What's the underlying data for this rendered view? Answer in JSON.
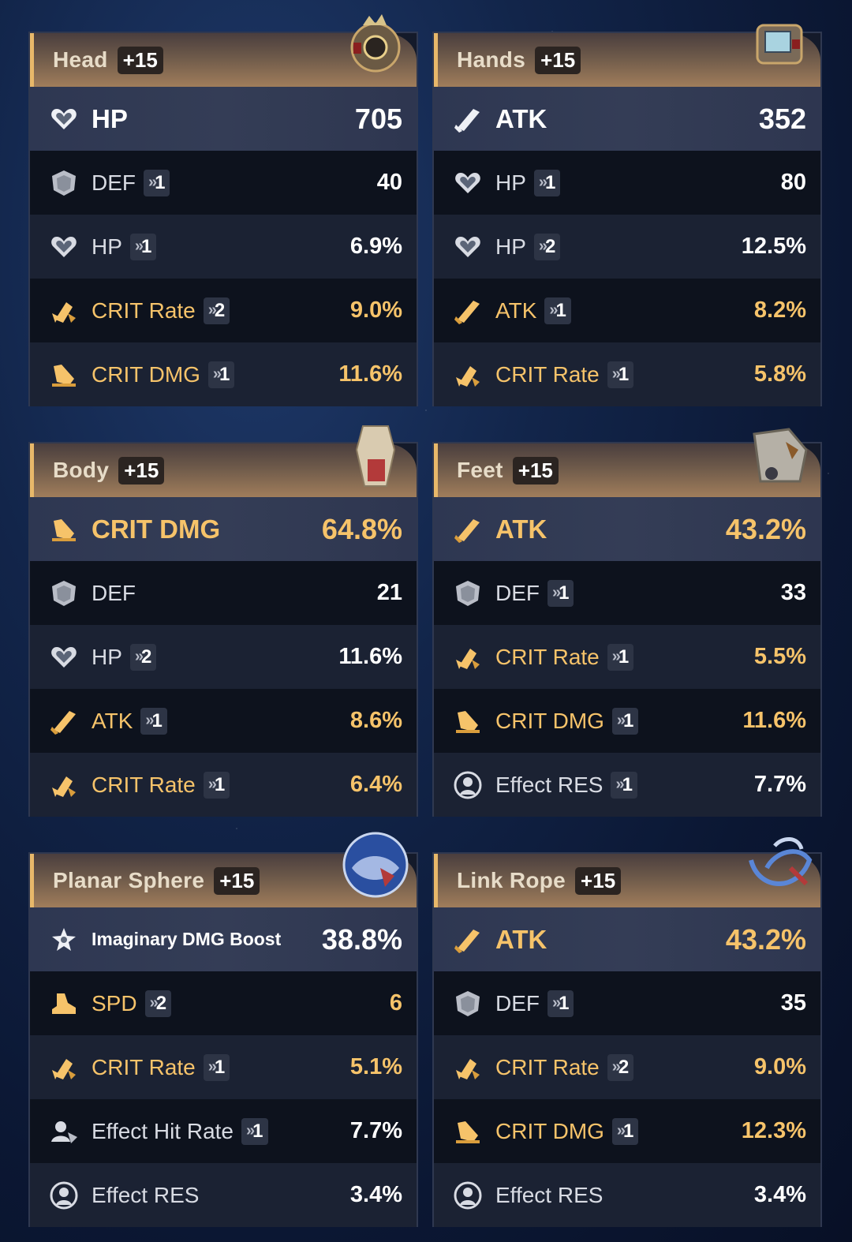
{
  "cards": [
    {
      "slot": "Head",
      "level": "+15",
      "art": "head-relic",
      "main": {
        "icon": "hp",
        "label": "HP",
        "value": "705",
        "gold": false
      },
      "subs": [
        {
          "icon": "def",
          "label": "DEF",
          "roll": "1",
          "value": "40",
          "gold": false
        },
        {
          "icon": "hp",
          "label": "HP",
          "roll": "1",
          "value": "6.9%",
          "gold": false
        },
        {
          "icon": "crit-rate",
          "label": "CRIT Rate",
          "roll": "2",
          "value": "9.0%",
          "gold": true
        },
        {
          "icon": "crit-dmg",
          "label": "CRIT DMG",
          "roll": "1",
          "value": "11.6%",
          "gold": true
        }
      ]
    },
    {
      "slot": "Hands",
      "level": "+15",
      "art": "hands-relic",
      "main": {
        "icon": "atk",
        "label": "ATK",
        "value": "352",
        "gold": false
      },
      "subs": [
        {
          "icon": "hp",
          "label": "HP",
          "roll": "1",
          "value": "80",
          "gold": false
        },
        {
          "icon": "hp",
          "label": "HP",
          "roll": "2",
          "value": "12.5%",
          "gold": false
        },
        {
          "icon": "atk",
          "label": "ATK",
          "roll": "1",
          "value": "8.2%",
          "gold": true
        },
        {
          "icon": "crit-rate",
          "label": "CRIT Rate",
          "roll": "1",
          "value": "5.8%",
          "gold": true
        }
      ]
    },
    {
      "slot": "Body",
      "level": "+15",
      "art": "body-relic",
      "main": {
        "icon": "crit-dmg",
        "label": "CRIT DMG",
        "value": "64.8%",
        "gold": true
      },
      "subs": [
        {
          "icon": "def",
          "label": "DEF",
          "roll": "",
          "value": "21",
          "gold": false
        },
        {
          "icon": "hp",
          "label": "HP",
          "roll": "2",
          "value": "11.6%",
          "gold": false
        },
        {
          "icon": "atk",
          "label": "ATK",
          "roll": "1",
          "value": "8.6%",
          "gold": true
        },
        {
          "icon": "crit-rate",
          "label": "CRIT Rate",
          "roll": "1",
          "value": "6.4%",
          "gold": true
        }
      ]
    },
    {
      "slot": "Feet",
      "level": "+15",
      "art": "feet-relic",
      "main": {
        "icon": "atk",
        "label": "ATK",
        "value": "43.2%",
        "gold": true
      },
      "subs": [
        {
          "icon": "def",
          "label": "DEF",
          "roll": "1",
          "value": "33",
          "gold": false
        },
        {
          "icon": "crit-rate",
          "label": "CRIT Rate",
          "roll": "1",
          "value": "5.5%",
          "gold": true
        },
        {
          "icon": "crit-dmg",
          "label": "CRIT DMG",
          "roll": "1",
          "value": "11.6%",
          "gold": true
        },
        {
          "icon": "effect-res",
          "label": "Effect RES",
          "roll": "1",
          "value": "7.7%",
          "gold": false
        }
      ]
    },
    {
      "slot": "Planar Sphere",
      "level": "+15",
      "art": "sphere-relic",
      "main": {
        "icon": "imaginary",
        "label": "Imaginary DMG Boost",
        "value": "38.8%",
        "gold": false,
        "small": true
      },
      "subs": [
        {
          "icon": "spd",
          "label": "SPD",
          "roll": "2",
          "value": "6",
          "gold": true
        },
        {
          "icon": "crit-rate",
          "label": "CRIT Rate",
          "roll": "1",
          "value": "5.1%",
          "gold": true
        },
        {
          "icon": "effect-hit",
          "label": "Effect Hit Rate",
          "roll": "1",
          "value": "7.7%",
          "gold": false
        },
        {
          "icon": "effect-res",
          "label": "Effect RES",
          "roll": "",
          "value": "3.4%",
          "gold": false
        }
      ]
    },
    {
      "slot": "Link Rope",
      "level": "+15",
      "art": "rope-relic",
      "main": {
        "icon": "atk",
        "label": "ATK",
        "value": "43.2%",
        "gold": true
      },
      "subs": [
        {
          "icon": "def",
          "label": "DEF",
          "roll": "1",
          "value": "35",
          "gold": false
        },
        {
          "icon": "crit-rate",
          "label": "CRIT Rate",
          "roll": "2",
          "value": "9.0%",
          "gold": true
        },
        {
          "icon": "crit-dmg",
          "label": "CRIT DMG",
          "roll": "1",
          "value": "12.3%",
          "gold": true
        },
        {
          "icon": "effect-res",
          "label": "Effect RES",
          "roll": "",
          "value": "3.4%",
          "gold": false
        }
      ]
    }
  ],
  "roll_chevron": "»",
  "colors": {
    "gold": "#f6c36a",
    "header_accent": "#e8b86a"
  }
}
